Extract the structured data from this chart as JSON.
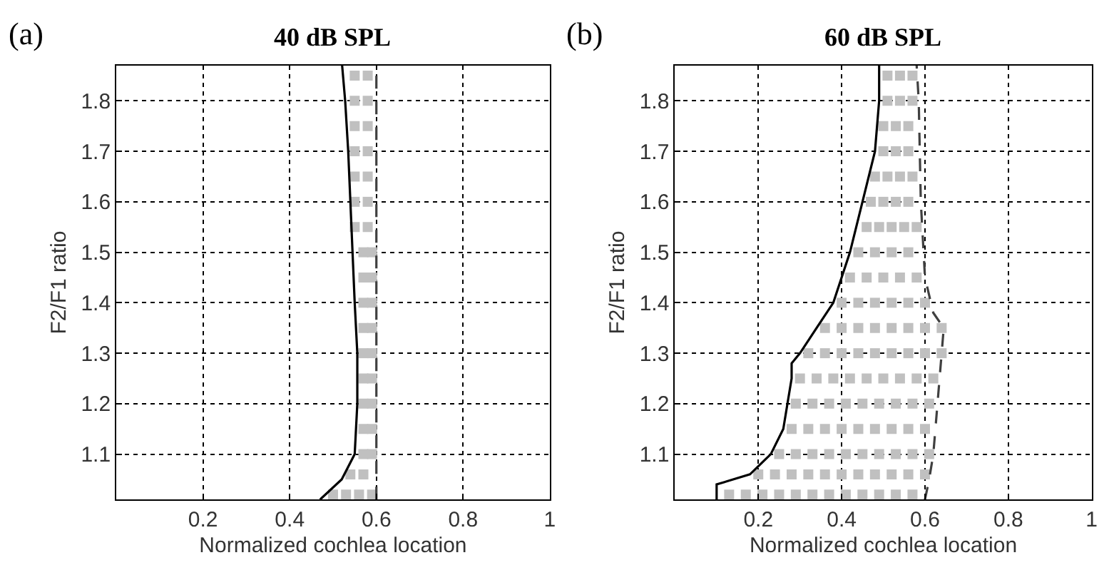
{
  "chart_data": [
    {
      "type": "line",
      "title": "40 dB SPL",
      "xlabel": "Normalized cochlea location",
      "ylabel": "F2/F1 ratio",
      "annotations": [
        "(a)"
      ],
      "xlim": [
        0,
        1
      ],
      "ylim": [
        1.01,
        1.87
      ],
      "xticks": [
        0.2,
        0.4,
        0.6,
        0.8,
        1
      ],
      "yticks": [
        1.1,
        1.2,
        1.3,
        1.4,
        1.5,
        1.6,
        1.7,
        1.8
      ],
      "grid": true,
      "line_style": "dotted",
      "series": [
        {
          "type": "scatter",
          "color": "#c0c0c0",
          "marker": "square",
          "x": [
            0.5,
            0.53,
            0.56,
            0.59,
            0.54,
            0.57,
            0.57,
            0.59,
            0.57,
            0.59,
            0.57,
            0.59,
            0.57,
            0.59,
            0.57,
            0.59,
            0.57,
            0.59,
            0.57,
            0.59,
            0.57,
            0.59,
            0.57,
            0.59,
            0.55,
            0.58,
            0.55,
            0.58,
            0.55,
            0.58,
            0.55,
            0.58,
            0.55,
            0.58,
            0.55,
            0.58,
            0.55,
            0.58
          ],
          "values": [
            1.02,
            1.02,
            1.02,
            1.02,
            1.06,
            1.06,
            1.1,
            1.1,
            1.15,
            1.15,
            1.2,
            1.2,
            1.25,
            1.25,
            1.3,
            1.3,
            1.35,
            1.35,
            1.4,
            1.4,
            1.45,
            1.45,
            1.5,
            1.5,
            1.55,
            1.55,
            1.6,
            1.6,
            1.65,
            1.65,
            1.7,
            1.7,
            1.75,
            1.75,
            1.8,
            1.8,
            1.85,
            1.85
          ]
        },
        {
          "type": "line",
          "color": "#404040",
          "line_style": "dashed",
          "x": [
            0.6,
            0.6,
            0.6,
            0.6,
            0.6,
            0.6,
            0.6,
            0.6,
            0.6,
            0.6,
            0.6
          ],
          "values": [
            1.01,
            1.05,
            1.1,
            1.2,
            1.3,
            1.4,
            1.5,
            1.6,
            1.7,
            1.8,
            1.87
          ]
        },
        {
          "type": "line",
          "color": "#000000",
          "line_style": "solid",
          "x": [
            0.47,
            0.52,
            0.55,
            0.556,
            0.556,
            0.55,
            0.545,
            0.54,
            0.535,
            0.528,
            0.521
          ],
          "values": [
            1.01,
            1.05,
            1.1,
            1.2,
            1.3,
            1.4,
            1.5,
            1.6,
            1.7,
            1.8,
            1.87
          ]
        }
      ]
    },
    {
      "type": "line",
      "title": "60 dB SPL",
      "xlabel": "Normalized cochlea location",
      "ylabel": "F2/F1 ratio",
      "annotations": [
        "(b)"
      ],
      "xlim": [
        0,
        1
      ],
      "ylim": [
        1.01,
        1.87
      ],
      "xticks": [
        0.2,
        0.4,
        0.6,
        0.8,
        1
      ],
      "yticks": [
        1.1,
        1.2,
        1.3,
        1.4,
        1.5,
        1.6,
        1.7,
        1.8
      ],
      "grid": true,
      "line_style": "dotted",
      "series": [
        {
          "type": "scatter",
          "color": "#c0c0c0",
          "marker": "square",
          "x": [
            0.13,
            0.17,
            0.21,
            0.25,
            0.29,
            0.33,
            0.37,
            0.41,
            0.45,
            0.49,
            0.53,
            0.57,
            0.2,
            0.24,
            0.28,
            0.32,
            0.36,
            0.4,
            0.44,
            0.48,
            0.52,
            0.56,
            0.6,
            0.25,
            0.29,
            0.33,
            0.37,
            0.41,
            0.45,
            0.49,
            0.53,
            0.57,
            0.61,
            0.28,
            0.32,
            0.36,
            0.4,
            0.44,
            0.48,
            0.52,
            0.56,
            0.6,
            0.29,
            0.33,
            0.37,
            0.41,
            0.45,
            0.49,
            0.53,
            0.57,
            0.61,
            0.3,
            0.34,
            0.38,
            0.42,
            0.46,
            0.5,
            0.54,
            0.58,
            0.62,
            0.32,
            0.36,
            0.4,
            0.44,
            0.48,
            0.52,
            0.56,
            0.6,
            0.64,
            0.36,
            0.4,
            0.44,
            0.48,
            0.52,
            0.56,
            0.6,
            0.64,
            0.4,
            0.44,
            0.48,
            0.52,
            0.56,
            0.6,
            0.42,
            0.46,
            0.5,
            0.54,
            0.58,
            0.44,
            0.48,
            0.52,
            0.56,
            0.46,
            0.49,
            0.52,
            0.55,
            0.58,
            0.47,
            0.5,
            0.53,
            0.56,
            0.48,
            0.51,
            0.54,
            0.57,
            0.5,
            0.53,
            0.56,
            0.5,
            0.53,
            0.56,
            0.51,
            0.54,
            0.57,
            0.51,
            0.54,
            0.57
          ],
          "values": [
            1.02,
            1.02,
            1.02,
            1.02,
            1.02,
            1.02,
            1.02,
            1.02,
            1.02,
            1.02,
            1.02,
            1.02,
            1.06,
            1.06,
            1.06,
            1.06,
            1.06,
            1.06,
            1.06,
            1.06,
            1.06,
            1.06,
            1.06,
            1.1,
            1.1,
            1.1,
            1.1,
            1.1,
            1.1,
            1.1,
            1.1,
            1.1,
            1.1,
            1.15,
            1.15,
            1.15,
            1.15,
            1.15,
            1.15,
            1.15,
            1.15,
            1.15,
            1.2,
            1.2,
            1.2,
            1.2,
            1.2,
            1.2,
            1.2,
            1.2,
            1.2,
            1.25,
            1.25,
            1.25,
            1.25,
            1.25,
            1.25,
            1.25,
            1.25,
            1.25,
            1.3,
            1.3,
            1.3,
            1.3,
            1.3,
            1.3,
            1.3,
            1.3,
            1.3,
            1.35,
            1.35,
            1.35,
            1.35,
            1.35,
            1.35,
            1.35,
            1.35,
            1.4,
            1.4,
            1.4,
            1.4,
            1.4,
            1.4,
            1.45,
            1.45,
            1.45,
            1.45,
            1.45,
            1.5,
            1.5,
            1.5,
            1.5,
            1.55,
            1.55,
            1.55,
            1.55,
            1.55,
            1.6,
            1.6,
            1.6,
            1.6,
            1.65,
            1.65,
            1.65,
            1.65,
            1.7,
            1.7,
            1.7,
            1.75,
            1.75,
            1.75,
            1.8,
            1.8,
            1.8,
            1.85,
            1.85,
            1.85
          ]
        },
        {
          "type": "line",
          "color": "#404040",
          "line_style": "dashed",
          "x": [
            0.6,
            0.61,
            0.62,
            0.63,
            0.64,
            0.645,
            0.62,
            0.6,
            0.59,
            0.585,
            0.58
          ],
          "values": [
            1.01,
            1.05,
            1.1,
            1.2,
            1.3,
            1.35,
            1.38,
            1.45,
            1.6,
            1.8,
            1.87
          ]
        },
        {
          "type": "line",
          "color": "#000000",
          "line_style": "solid",
          "x": [
            0.1,
            0.1,
            0.18,
            0.23,
            0.26,
            0.27,
            0.28,
            0.28,
            0.3,
            0.34,
            0.38,
            0.42,
            0.45,
            0.48,
            0.49,
            0.49
          ],
          "values": [
            1.01,
            1.04,
            1.06,
            1.1,
            1.15,
            1.2,
            1.25,
            1.28,
            1.3,
            1.35,
            1.4,
            1.5,
            1.6,
            1.7,
            1.8,
            1.87
          ]
        }
      ]
    }
  ]
}
